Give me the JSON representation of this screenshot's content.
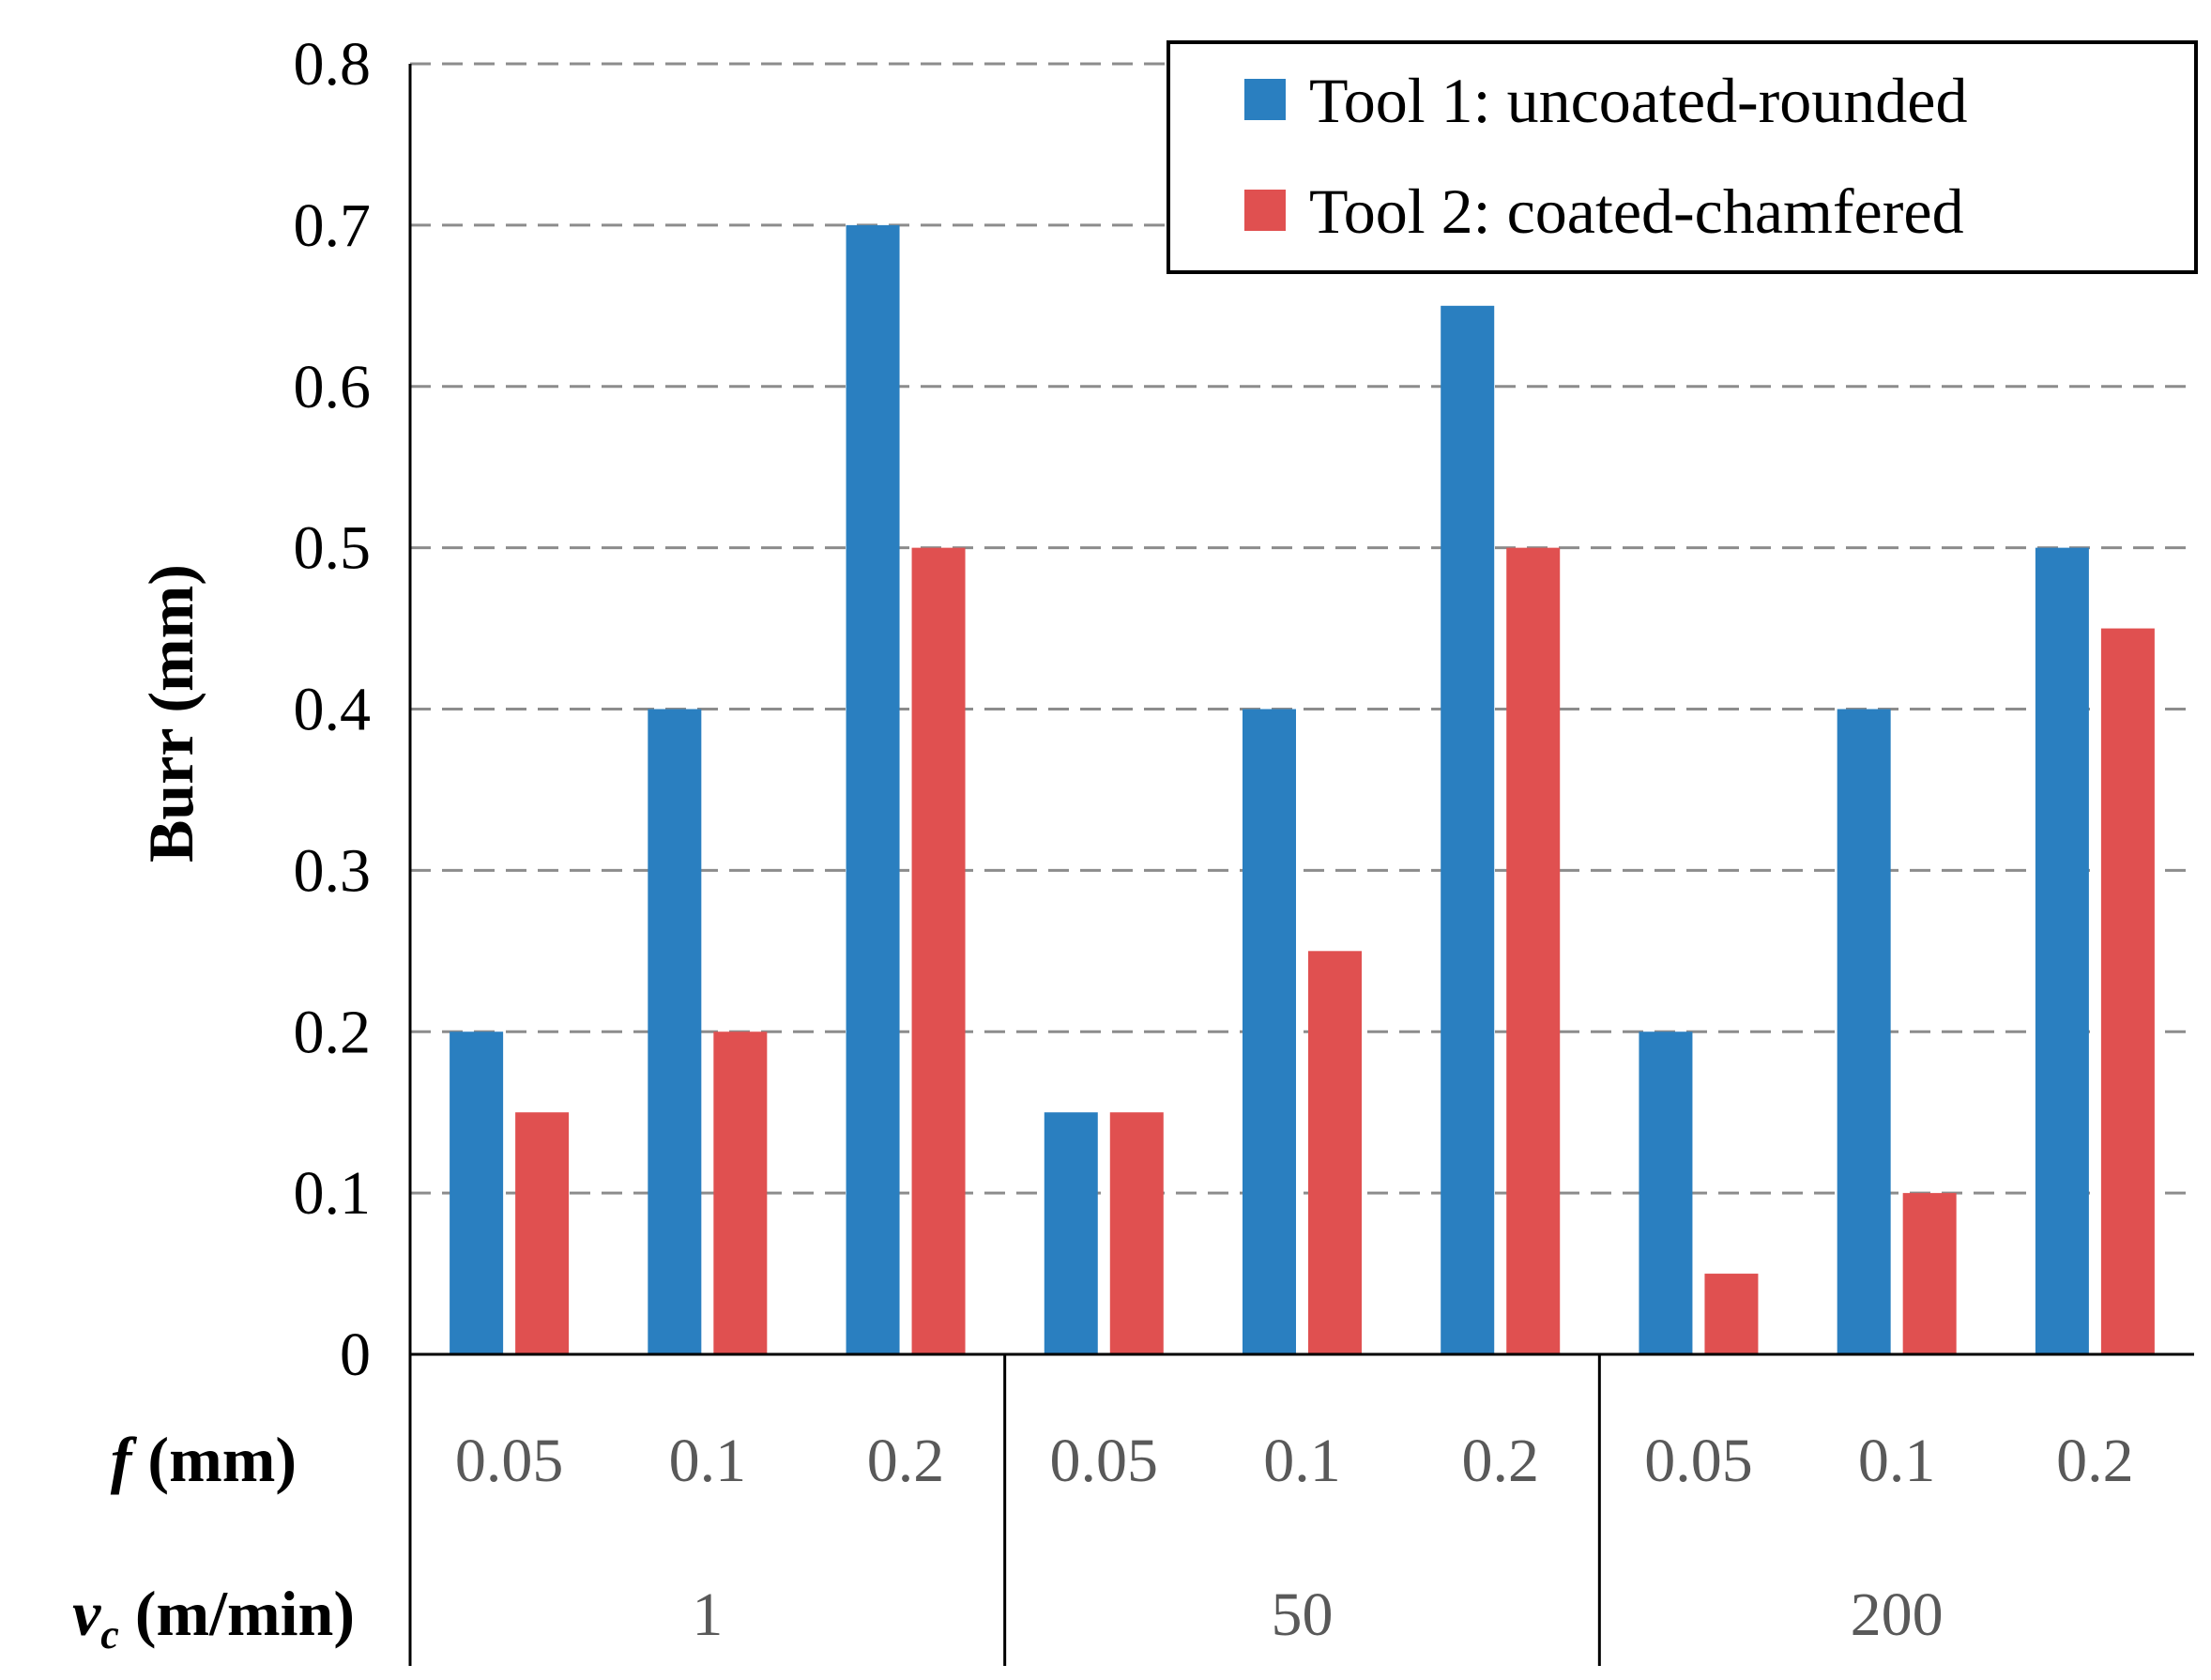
{
  "chart_data": {
    "type": "bar",
    "title": "",
    "ylabel": "Burr (mm)",
    "ylim": [
      0,
      0.8
    ],
    "yticks": [
      "0",
      "0.1",
      "0.2",
      "0.3",
      "0.4",
      "0.5",
      "0.6",
      "0.7",
      "0.8"
    ],
    "grid": true,
    "legend_position": "top-right",
    "row_labels": {
      "f": {
        "var": "f",
        "unit": " (mm)"
      },
      "vc": {
        "var": "v",
        "sub": "c",
        "unit": " (m/min)"
      }
    },
    "groups": [
      {
        "label": "1",
        "categories": [
          "0.05",
          "0.1",
          "0.2"
        ]
      },
      {
        "label": "50",
        "categories": [
          "0.05",
          "0.1",
          "0.2"
        ]
      },
      {
        "label": "200",
        "categories": [
          "0.05",
          "0.1",
          "0.2"
        ]
      }
    ],
    "series": [
      {
        "name": "Tool 1: uncoated-rounded",
        "color": "#2a7fc0",
        "values": [
          0.2,
          0.4,
          0.7,
          0.15,
          0.4,
          0.65,
          0.2,
          0.4,
          0.5
        ]
      },
      {
        "name": "Tool 2: coated-chamfered",
        "color": "#e05050",
        "values": [
          0.15,
          0.2,
          0.5,
          0.15,
          0.25,
          0.5,
          0.05,
          0.1,
          0.45
        ]
      }
    ]
  }
}
